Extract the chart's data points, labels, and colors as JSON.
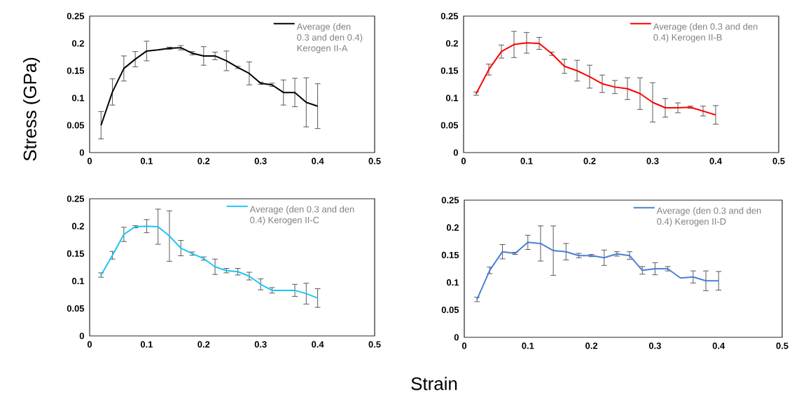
{
  "chart_data": [
    {
      "type": "line",
      "ylabel": "Stress (GPa)",
      "x": [
        0.02,
        0.04,
        0.06,
        0.08,
        0.1,
        0.12,
        0.14,
        0.16,
        0.18,
        0.2,
        0.22,
        0.24,
        0.26,
        0.28,
        0.3,
        0.32,
        0.34,
        0.36,
        0.38,
        0.4
      ],
      "series": [
        {
          "name": "Average (den 0.3 and den 0.4) Kerogen II-A",
          "color": "#000000",
          "values": [
            0.05,
            0.111,
            0.154,
            0.171,
            0.186,
            0.188,
            0.191,
            0.192,
            0.182,
            0.177,
            0.177,
            0.168,
            0.156,
            0.145,
            0.127,
            0.124,
            0.11,
            0.11,
            0.092,
            0.085
          ],
          "errors": [
            0.025,
            0.024,
            0.023,
            0.014,
            0.018,
            null,
            0.002,
            0.004,
            0.003,
            0.017,
            0.007,
            0.018,
            0.002,
            0.021,
            0.002,
            0.003,
            0.023,
            0.026,
            0.045,
            0.041
          ]
        }
      ],
      "xlim": [
        0,
        0.5
      ],
      "xticks": [
        0,
        0.1,
        0.2,
        0.3,
        0.4,
        0.5
      ],
      "ylim": [
        0,
        0.25
      ],
      "yticks": [
        0,
        0.05,
        0.1,
        0.15,
        0.2,
        0.25
      ],
      "legend": "top right",
      "grid": false,
      "marker": "none"
    },
    {
      "type": "line",
      "x": [
        0.02,
        0.04,
        0.06,
        0.08,
        0.1,
        0.12,
        0.14,
        0.16,
        0.18,
        0.2,
        0.22,
        0.24,
        0.26,
        0.28,
        0.3,
        0.32,
        0.34,
        0.36,
        0.38,
        0.4
      ],
      "series": [
        {
          "name": "Average (den 0.3 and den 0.4) Kerogen II-B",
          "color": "#ff0000",
          "values": [
            0.108,
            0.152,
            0.185,
            0.198,
            0.201,
            0.2,
            0.181,
            0.158,
            0.15,
            0.139,
            0.126,
            0.12,
            0.117,
            0.108,
            0.092,
            0.082,
            0.082,
            0.083,
            0.076,
            0.069
          ],
          "errors": [
            0.003,
            0.01,
            0.012,
            0.024,
            0.019,
            0.011,
            0.003,
            0.013,
            0.019,
            0.021,
            0.016,
            0.012,
            0.02,
            0.029,
            0.036,
            0.017,
            0.009,
            0.002,
            0.009,
            0.017
          ]
        }
      ],
      "xlim": [
        0,
        0.5
      ],
      "xticks": [
        0,
        0.1,
        0.2,
        0.3,
        0.4,
        0.5
      ],
      "ylim": [
        0,
        0.25
      ],
      "yticks": [
        0,
        0.05,
        0.1,
        0.15,
        0.2,
        0.25
      ],
      "legend": "top right",
      "grid": false,
      "marker": "none"
    },
    {
      "type": "line",
      "xlabel": "Strain",
      "x": [
        0.02,
        0.04,
        0.06,
        0.08,
        0.1,
        0.12,
        0.14,
        0.16,
        0.18,
        0.2,
        0.22,
        0.24,
        0.26,
        0.28,
        0.3,
        0.32,
        0.34,
        0.36,
        0.38,
        0.4
      ],
      "series": [
        {
          "name": "Average (den 0.3 and den 0.4) Kerogen II-C",
          "color": "#1fc4f4",
          "values": [
            0.111,
            0.147,
            0.185,
            0.199,
            0.2,
            0.199,
            0.182,
            0.16,
            0.15,
            0.141,
            0.126,
            0.119,
            0.117,
            0.109,
            0.094,
            0.083,
            0.083,
            0.083,
            0.077,
            0.069
          ],
          "errors": [
            0.004,
            0.007,
            0.013,
            0.002,
            0.012,
            0.032,
            0.046,
            0.014,
            0.003,
            0.003,
            0.014,
            0.004,
            0.006,
            0.007,
            0.01,
            0.005,
            null,
            0.011,
            0.019,
            0.017
          ]
        }
      ],
      "xlim": [
        0,
        0.5
      ],
      "xticks": [
        0,
        0.1,
        0.2,
        0.3,
        0.4,
        0.5
      ],
      "ylim": [
        0,
        0.25
      ],
      "yticks": [
        0,
        0.05,
        0.1,
        0.15,
        0.2,
        0.25
      ],
      "legend": "top right",
      "grid": false,
      "marker": "none"
    },
    {
      "type": "line",
      "x": [
        0.02,
        0.04,
        0.06,
        0.08,
        0.1,
        0.12,
        0.14,
        0.16,
        0.18,
        0.2,
        0.22,
        0.24,
        0.26,
        0.28,
        0.3,
        0.32,
        0.34,
        0.36,
        0.38,
        0.4
      ],
      "series": [
        {
          "name": "Average (den 0.3 and den 0.4) Kerogen II-D",
          "color": "#4a7fd6",
          "values": [
            0.069,
            0.122,
            0.156,
            0.153,
            0.173,
            0.171,
            0.158,
            0.156,
            0.149,
            0.149,
            0.145,
            0.152,
            0.149,
            0.122,
            0.125,
            0.125,
            0.108,
            0.11,
            0.103,
            0.103
          ],
          "errors": [
            0.004,
            0.006,
            0.013,
            0.002,
            0.013,
            0.032,
            0.045,
            0.015,
            0.004,
            0.002,
            0.014,
            0.004,
            0.007,
            0.007,
            0.011,
            0.004,
            null,
            0.011,
            0.018,
            0.017
          ]
        }
      ],
      "xlim": [
        0,
        0.5
      ],
      "xticks": [
        0,
        0.1,
        0.2,
        0.3,
        0.4,
        0.5
      ],
      "ylim": [
        0,
        0.25
      ],
      "yticks": [
        0,
        0.05,
        0.1,
        0.15,
        0.2,
        0.25
      ],
      "legend": "top right",
      "grid": false,
      "marker": "none"
    }
  ]
}
